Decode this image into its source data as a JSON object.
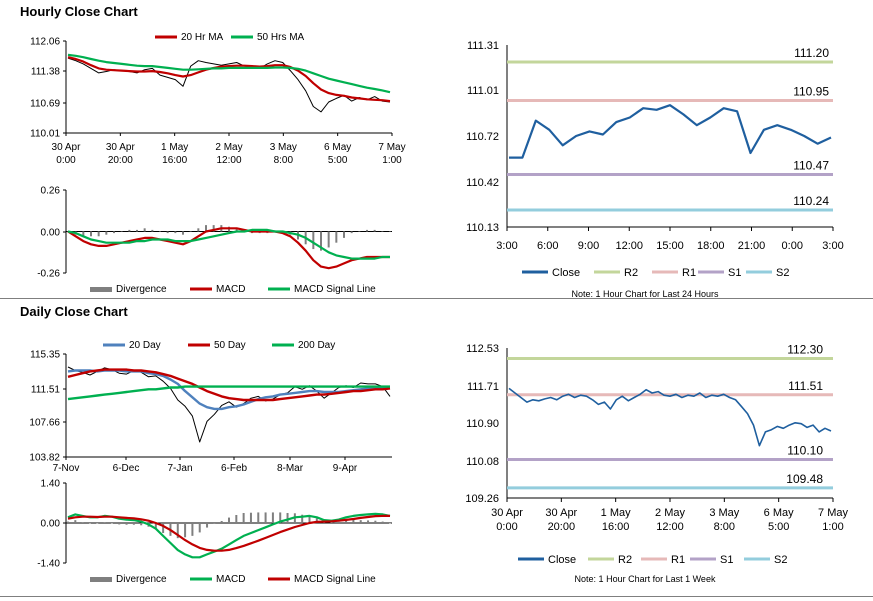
{
  "sections": {
    "hourly_title": "Hourly Close Chart",
    "daily_title": "Daily Close Chart"
  },
  "chart_data": [
    {
      "id": "hourly_price",
      "type": "line",
      "title": "",
      "legend": [
        "20 Hr MA",
        "50 Hrs MA"
      ],
      "y_ticks": [
        "112.06",
        "111.38",
        "110.69",
        "110.01"
      ],
      "ylim": [
        110.01,
        112.06
      ],
      "x_ticks": [
        [
          "30 Apr",
          "0:00"
        ],
        [
          "30 Apr",
          "20:00"
        ],
        [
          "1 May",
          "16:00"
        ],
        [
          "2 May",
          "12:00"
        ],
        [
          "3 May",
          "8:00"
        ],
        [
          "6 May",
          "5:00"
        ],
        [
          "7 May",
          "1:00"
        ]
      ],
      "series": [
        {
          "name": "Close",
          "color": "#000000",
          "values": [
            111.68,
            111.62,
            111.55,
            111.45,
            111.35,
            111.38,
            111.42,
            111.4,
            111.38,
            111.35,
            111.42,
            111.45,
            111.3,
            111.25,
            111.2,
            111.05,
            111.5,
            111.62,
            111.58,
            111.55,
            111.52,
            111.55,
            111.58,
            111.5,
            111.48,
            111.45,
            111.55,
            111.62,
            111.58,
            111.4,
            111.2,
            110.95,
            110.6,
            110.48,
            110.7,
            110.78,
            110.85,
            110.72,
            110.8,
            110.75,
            110.82,
            110.72,
            110.7
          ]
        },
        {
          "name": "20 Hr MA",
          "color": "#c00000",
          "values": [
            111.7,
            111.66,
            111.6,
            111.52,
            111.45,
            111.42,
            111.41,
            111.4,
            111.39,
            111.38,
            111.38,
            111.39,
            111.37,
            111.34,
            111.3,
            111.27,
            111.3,
            111.36,
            111.42,
            111.46,
            111.49,
            111.5,
            111.51,
            111.51,
            111.5,
            111.49,
            111.5,
            111.52,
            111.52,
            111.48,
            111.4,
            111.28,
            111.12,
            110.98,
            110.9,
            110.86,
            110.84,
            110.8,
            110.78,
            110.76,
            110.75,
            110.74,
            110.72
          ]
        },
        {
          "name": "50 Hrs MA",
          "color": "#00b050",
          "values": [
            111.75,
            111.73,
            111.7,
            111.66,
            111.62,
            111.59,
            111.57,
            111.55,
            111.53,
            111.51,
            111.5,
            111.5,
            111.48,
            111.46,
            111.44,
            111.42,
            111.42,
            111.43,
            111.44,
            111.45,
            111.45,
            111.46,
            111.46,
            111.46,
            111.46,
            111.46,
            111.46,
            111.47,
            111.47,
            111.46,
            111.44,
            111.4,
            111.34,
            111.28,
            111.22,
            111.18,
            111.14,
            111.1,
            111.06,
            111.02,
            110.99,
            110.96,
            110.92
          ]
        }
      ]
    },
    {
      "id": "hourly_macd",
      "type": "line",
      "legend": [
        "Divergence",
        "MACD",
        "MACD Signal Line"
      ],
      "y_ticks": [
        "0.26",
        "0.00",
        "-0.26"
      ],
      "ylim": [
        -0.26,
        0.26
      ],
      "series": [
        {
          "name": "MACD",
          "color": "#c00000",
          "values": [
            0.0,
            -0.03,
            -0.06,
            -0.08,
            -0.09,
            -0.09,
            -0.08,
            -0.07,
            -0.06,
            -0.05,
            -0.04,
            -0.04,
            -0.05,
            -0.06,
            -0.07,
            -0.08,
            -0.06,
            -0.03,
            0.0,
            0.01,
            0.02,
            0.02,
            0.02,
            0.01,
            0.0,
            0.0,
            0.0,
            0.0,
            -0.01,
            -0.03,
            -0.07,
            -0.12,
            -0.18,
            -0.22,
            -0.23,
            -0.22,
            -0.2,
            -0.18,
            -0.17,
            -0.16,
            -0.16,
            -0.16,
            -0.16
          ]
        },
        {
          "name": "MACD Signal Line",
          "color": "#00b050",
          "values": [
            0.0,
            -0.01,
            -0.03,
            -0.05,
            -0.06,
            -0.07,
            -0.07,
            -0.07,
            -0.07,
            -0.06,
            -0.06,
            -0.05,
            -0.05,
            -0.05,
            -0.06,
            -0.06,
            -0.06,
            -0.05,
            -0.04,
            -0.03,
            -0.02,
            -0.01,
            0.0,
            0.0,
            0.01,
            0.01,
            0.01,
            0.0,
            0.0,
            -0.01,
            -0.02,
            -0.04,
            -0.07,
            -0.1,
            -0.13,
            -0.15,
            -0.16,
            -0.17,
            -0.17,
            -0.17,
            -0.17,
            -0.16,
            -0.16
          ]
        },
        {
          "name": "Divergence",
          "color": "#7f7f7f",
          "values": [
            0.0,
            -0.02,
            -0.03,
            -0.03,
            -0.03,
            -0.02,
            -0.01,
            0.0,
            0.01,
            0.01,
            0.02,
            0.01,
            0.0,
            -0.01,
            -0.01,
            -0.02,
            0.0,
            0.02,
            0.04,
            0.04,
            0.04,
            0.03,
            0.02,
            0.01,
            -0.01,
            -0.01,
            -0.01,
            0.0,
            -0.01,
            -0.02,
            -0.05,
            -0.08,
            -0.11,
            -0.12,
            -0.1,
            -0.07,
            -0.04,
            -0.01,
            0.0,
            0.01,
            0.01,
            0.0,
            0.0
          ]
        }
      ]
    },
    {
      "id": "hourly_levels",
      "type": "line",
      "y_ticks": [
        "111.31",
        "111.01",
        "110.72",
        "110.42",
        "110.13"
      ],
      "ylim": [
        110.13,
        111.31
      ],
      "x_ticks": [
        "3:00",
        "6:00",
        "9:00",
        "12:00",
        "15:00",
        "18:00",
        "21:00",
        "0:00",
        "3:00"
      ],
      "levels": [
        {
          "name": "R2",
          "value": 111.2,
          "label": "111.20",
          "color": "#c3d69b"
        },
        {
          "name": "R1",
          "value": 110.95,
          "label": "110.95",
          "color": "#e6b9b8"
        },
        {
          "name": "S1",
          "value": 110.47,
          "label": "110.47",
          "color": "#b3a2c7"
        },
        {
          "name": "S2",
          "value": 110.24,
          "label": "110.24",
          "color": "#93cddd"
        }
      ],
      "series": [
        {
          "name": "Close",
          "color": "#1f5f9f",
          "values": [
            110.58,
            110.58,
            110.82,
            110.76,
            110.66,
            110.72,
            110.75,
            110.73,
            110.81,
            110.84,
            110.9,
            110.89,
            110.92,
            110.86,
            110.79,
            110.84,
            110.9,
            110.88,
            110.61,
            110.76,
            110.79,
            110.76,
            110.72,
            110.67,
            110.71
          ]
        }
      ],
      "legend": [
        "Close",
        "R2",
        "R1",
        "S1",
        "S2"
      ],
      "note": "Note: 1 Hour Chart for Last 24 Hours"
    },
    {
      "id": "daily_price",
      "type": "line",
      "legend": [
        "20 Day",
        "50 Day",
        "200 Day"
      ],
      "y_ticks": [
        "115.35",
        "111.51",
        "107.66",
        "103.82"
      ],
      "ylim": [
        103.82,
        115.35
      ],
      "x_ticks": [
        "7-Nov",
        "6-Dec",
        "7-Jan",
        "6-Feb",
        "8-Mar",
        "9-Apr"
      ],
      "series": [
        {
          "name": "Close",
          "color": "#000000",
          "values": [
            113.9,
            113.5,
            113.3,
            113.0,
            113.4,
            113.8,
            113.6,
            113.2,
            113.1,
            113.5,
            113.3,
            112.8,
            112.9,
            112.3,
            111.5,
            110.2,
            109.5,
            108.4,
            105.5,
            107.8,
            108.6,
            109.6,
            110.0,
            109.4,
            109.8,
            110.4,
            110.6,
            110.1,
            110.3,
            110.8,
            111.0,
            111.7,
            111.4,
            111.8,
            111.2,
            110.4,
            111.0,
            111.6,
            111.8,
            111.6,
            112.1,
            112.0,
            112.0,
            111.7,
            110.6
          ]
        },
        {
          "name": "20 Day",
          "color": "#4f81bd",
          "values": [
            113.4,
            113.5,
            113.5,
            113.5,
            113.4,
            113.5,
            113.5,
            113.5,
            113.4,
            113.4,
            113.4,
            113.2,
            113.1,
            112.9,
            112.5,
            112.0,
            111.2,
            110.5,
            109.8,
            109.4,
            109.2,
            109.2,
            109.4,
            109.5,
            109.7,
            110.0,
            110.3,
            110.5,
            110.6,
            110.8,
            110.9,
            111.0,
            111.1,
            111.2,
            111.2,
            111.1,
            111.1,
            111.1,
            111.2,
            111.3,
            111.4,
            111.5,
            111.6,
            111.6,
            111.6
          ]
        },
        {
          "name": "50 Day",
          "color": "#c00000",
          "values": [
            112.8,
            113.0,
            113.2,
            113.4,
            113.5,
            113.6,
            113.6,
            113.6,
            113.6,
            113.5,
            113.5,
            113.4,
            113.3,
            113.1,
            112.9,
            112.6,
            112.3,
            112.0,
            111.6,
            111.2,
            110.9,
            110.6,
            110.4,
            110.3,
            110.2,
            110.2,
            110.2,
            110.2,
            110.2,
            110.3,
            110.4,
            110.5,
            110.6,
            110.7,
            110.8,
            110.8,
            110.9,
            111.0,
            111.1,
            111.2,
            111.2,
            111.3,
            111.4,
            111.4,
            111.5
          ]
        },
        {
          "name": "200 Day",
          "color": "#00b050",
          "values": [
            110.3,
            110.4,
            110.5,
            110.6,
            110.7,
            110.8,
            110.9,
            111.0,
            111.1,
            111.2,
            111.3,
            111.4,
            111.4,
            111.5,
            111.6,
            111.6,
            111.7,
            111.7,
            111.7,
            111.7,
            111.7,
            111.7,
            111.7,
            111.7,
            111.7,
            111.7,
            111.7,
            111.7,
            111.7,
            111.7,
            111.7,
            111.7,
            111.7,
            111.7,
            111.7,
            111.7,
            111.7,
            111.7,
            111.7,
            111.7,
            111.7,
            111.7,
            111.7,
            111.7,
            111.7
          ]
        }
      ]
    },
    {
      "id": "daily_macd",
      "type": "line",
      "legend": [
        "Divergence",
        "MACD",
        "MACD Signal Line"
      ],
      "y_ticks": [
        "1.40",
        "0.00",
        "-1.40"
      ],
      "ylim": [
        -1.4,
        1.4
      ],
      "series": [
        {
          "name": "MACD",
          "color": "#00b050",
          "values": [
            0.2,
            0.3,
            0.25,
            0.2,
            0.2,
            0.25,
            0.22,
            0.15,
            0.12,
            0.1,
            0.05,
            -0.05,
            -0.2,
            -0.45,
            -0.7,
            -0.95,
            -1.1,
            -1.2,
            -1.2,
            -1.1,
            -1.0,
            -0.9,
            -0.75,
            -0.6,
            -0.45,
            -0.35,
            -0.25,
            -0.15,
            -0.05,
            0.05,
            0.12,
            0.2,
            0.22,
            0.25,
            0.2,
            0.1,
            0.08,
            0.12,
            0.2,
            0.25,
            0.28,
            0.3,
            0.32,
            0.3,
            0.25
          ]
        },
        {
          "name": "MACD Signal Line",
          "color": "#c00000",
          "values": [
            0.15,
            0.2,
            0.22,
            0.22,
            0.21,
            0.22,
            0.22,
            0.2,
            0.18,
            0.16,
            0.13,
            0.08,
            0.0,
            -0.1,
            -0.25,
            -0.42,
            -0.6,
            -0.75,
            -0.87,
            -0.94,
            -0.97,
            -0.97,
            -0.94,
            -0.88,
            -0.8,
            -0.71,
            -0.62,
            -0.52,
            -0.42,
            -0.32,
            -0.23,
            -0.14,
            -0.07,
            0.0,
            0.04,
            0.05,
            0.06,
            0.08,
            0.11,
            0.14,
            0.18,
            0.21,
            0.24,
            0.25,
            0.25
          ]
        },
        {
          "name": "Divergence",
          "color": "#7f7f7f",
          "values": [
            0.05,
            0.1,
            0.03,
            -0.02,
            -0.01,
            0.03,
            0.0,
            -0.05,
            -0.06,
            -0.06,
            -0.08,
            -0.13,
            -0.2,
            -0.35,
            -0.45,
            -0.53,
            -0.5,
            -0.45,
            -0.33,
            -0.16,
            -0.03,
            0.07,
            0.19,
            0.28,
            0.35,
            0.36,
            0.37,
            0.37,
            0.37,
            0.37,
            0.35,
            0.34,
            0.29,
            0.25,
            0.16,
            0.05,
            0.02,
            0.04,
            0.09,
            0.11,
            0.1,
            0.09,
            0.08,
            0.05,
            0.0
          ]
        }
      ]
    },
    {
      "id": "weekly_levels",
      "type": "line",
      "y_ticks": [
        "112.53",
        "111.71",
        "110.90",
        "110.08",
        "109.26"
      ],
      "ylim": [
        109.26,
        112.53
      ],
      "x_ticks": [
        [
          "30 Apr",
          "0:00"
        ],
        [
          "30 Apr",
          "20:00"
        ],
        [
          "1 May",
          "16:00"
        ],
        [
          "2 May",
          "12:00"
        ],
        [
          "3 May",
          "8:00"
        ],
        [
          "6 May",
          "5:00"
        ],
        [
          "7 May",
          "1:00"
        ]
      ],
      "levels": [
        {
          "name": "R2",
          "value": 112.3,
          "label": "112.30",
          "color": "#c3d69b"
        },
        {
          "name": "R1",
          "value": 111.51,
          "label": "111.51",
          "color": "#e6b9b8"
        },
        {
          "name": "S1",
          "value": 110.1,
          "label": "110.10",
          "color": "#b3a2c7"
        },
        {
          "name": "S2",
          "value": 109.48,
          "label": "109.48",
          "color": "#93cddd"
        }
      ],
      "series": [
        {
          "name": "Close",
          "color": "#1f5f9f",
          "values": [
            111.65,
            111.55,
            111.45,
            111.35,
            111.4,
            111.38,
            111.42,
            111.45,
            111.4,
            111.48,
            111.52,
            111.45,
            111.5,
            111.48,
            111.4,
            111.3,
            111.35,
            111.2,
            111.4,
            111.48,
            111.38,
            111.45,
            111.52,
            111.62,
            111.55,
            111.58,
            111.5,
            111.48,
            111.52,
            111.45,
            111.5,
            111.48,
            111.55,
            111.45,
            111.5,
            111.48,
            111.52,
            111.45,
            111.4,
            111.25,
            111.1,
            110.85,
            110.4,
            110.7,
            110.75,
            110.82,
            110.78,
            110.85,
            110.9,
            110.88,
            110.8,
            110.85,
            110.7,
            110.78,
            110.72
          ]
        }
      ],
      "legend": [
        "Close",
        "R2",
        "R1",
        "S1",
        "S2"
      ],
      "note": "Note: 1 Hour Chart for Last 1 Week"
    }
  ]
}
